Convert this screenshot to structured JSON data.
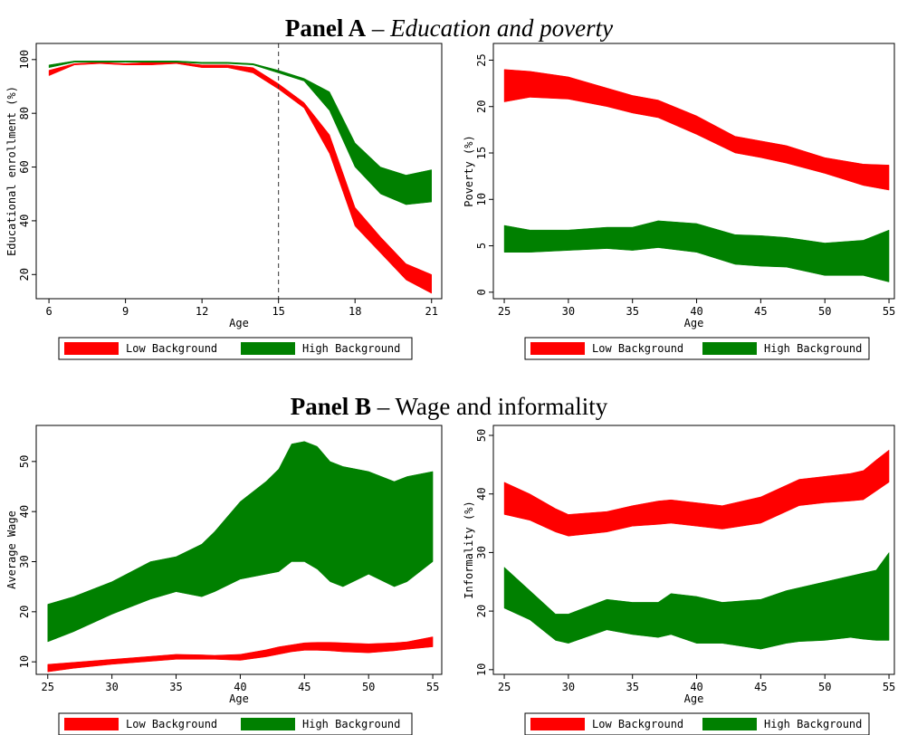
{
  "panels": [
    {
      "label": "Panel A",
      "separator": "–",
      "subtitle": "Education and poverty",
      "italic": true
    },
    {
      "label": "Panel B",
      "separator": "–",
      "subtitle": "Wage and informality",
      "italic": false
    }
  ],
  "chart_data": [
    {
      "type": "band",
      "x_label": "Age",
      "y_label": "Educational enrollment (%)",
      "legend": "bottom",
      "vline": 15,
      "xlim": [
        5.5,
        21.4
      ],
      "ylim": [
        11,
        106
      ],
      "xticks": [
        6,
        9,
        12,
        15,
        18,
        21
      ],
      "yticks": [
        20,
        40,
        60,
        80,
        100
      ],
      "x": [
        6,
        7,
        8,
        9,
        10,
        11,
        12,
        13,
        14,
        15,
        16,
        17,
        18,
        19,
        20,
        21
      ],
      "series": [
        {
          "name": "Low Background",
          "color": "#ff0000",
          "lower": [
            94,
            98,
            98.5,
            98,
            98,
            98.5,
            97,
            97,
            95,
            89,
            82,
            65,
            38,
            28,
            18,
            13
          ],
          "upper": [
            96,
            98.5,
            99,
            98.5,
            99,
            99,
            98,
            98,
            97,
            91,
            84,
            72,
            45,
            34,
            24,
            20
          ]
        },
        {
          "name": "High Background",
          "color": "#008000",
          "lower": [
            97,
            99,
            99,
            99,
            99,
            99,
            98.5,
            98.5,
            98,
            95,
            92,
            81,
            60,
            50,
            46,
            47
          ],
          "upper": [
            98,
            99.5,
            99.5,
            99.5,
            99.5,
            99.5,
            99,
            99,
            98.5,
            96,
            93,
            88,
            69,
            60,
            57,
            59
          ]
        }
      ]
    },
    {
      "type": "band",
      "x_label": "Age",
      "y_label": "Poverty (%)",
      "legend": "bottom",
      "xlim": [
        24.15,
        55.42
      ],
      "ylim": [
        -0.7,
        26.8
      ],
      "xticks": [
        25,
        30,
        35,
        40,
        45,
        50,
        55
      ],
      "yticks": [
        0,
        5,
        10,
        15,
        20,
        25
      ],
      "x": [
        25,
        27,
        30,
        33,
        35,
        37,
        40,
        43,
        45,
        47,
        50,
        53,
        55
      ],
      "series": [
        {
          "name": "Low Background",
          "color": "#ff0000",
          "lower": [
            20.5,
            21,
            20.8,
            20,
            19.3,
            18.8,
            17,
            15,
            14.5,
            13.9,
            12.8,
            11.5,
            11
          ],
          "upper": [
            24,
            23.8,
            23.2,
            22,
            21.2,
            20.7,
            19,
            16.8,
            16.3,
            15.8,
            14.5,
            13.8,
            13.7
          ]
        },
        {
          "name": "High Background",
          "color": "#008000",
          "lower": [
            4.3,
            4.3,
            4.5,
            4.7,
            4.5,
            4.8,
            4.3,
            3,
            2.8,
            2.7,
            1.8,
            1.8,
            1.1
          ],
          "upper": [
            7.2,
            6.7,
            6.7,
            7,
            7,
            7.7,
            7.4,
            6.2,
            6.1,
            5.9,
            5.3,
            5.6,
            6.7
          ]
        }
      ]
    },
    {
      "type": "band",
      "x_label": "Age",
      "y_label": "Average Wage",
      "legend": "bottom",
      "xlim": [
        24.1,
        55.7
      ],
      "ylim": [
        7.5,
        57.2
      ],
      "xticks": [
        25,
        30,
        35,
        40,
        45,
        50,
        55
      ],
      "yticks": [
        10,
        20,
        30,
        40,
        50
      ],
      "x": [
        25,
        27,
        30,
        33,
        35,
        37,
        38,
        40,
        42,
        43,
        44,
        45,
        46,
        47,
        48,
        50,
        52,
        53,
        55
      ],
      "series": [
        {
          "name": "Low Background",
          "color": "#ff0000",
          "lower": [
            8,
            8.7,
            9.5,
            10.1,
            10.5,
            10.5,
            10.5,
            10.3,
            11,
            11.5,
            12,
            12.3,
            12.3,
            12.2,
            12,
            11.8,
            12.2,
            12.5,
            13
          ],
          "upper": [
            9.5,
            9.9,
            10.5,
            11.1,
            11.5,
            11.4,
            11.3,
            11.5,
            12.4,
            13,
            13.4,
            13.8,
            13.9,
            13.9,
            13.8,
            13.6,
            13.8,
            14,
            15
          ]
        },
        {
          "name": "High Background",
          "color": "#008000",
          "lower": [
            14,
            16,
            19.5,
            22.5,
            24,
            23,
            24,
            26.5,
            27.5,
            28,
            30,
            30,
            28.5,
            26,
            25,
            27.5,
            25,
            26,
            30
          ],
          "upper": [
            21.5,
            23,
            26,
            30,
            31,
            33.5,
            36,
            42,
            46,
            48.5,
            53.5,
            54,
            53,
            50,
            49,
            48,
            46,
            47,
            48
          ]
        }
      ]
    },
    {
      "type": "band",
      "x_label": "Age",
      "y_label": "Informality (%)",
      "legend": "bottom",
      "xlim": [
        24.15,
        55.42
      ],
      "ylim": [
        9.2,
        51.7
      ],
      "xticks": [
        25,
        30,
        35,
        40,
        45,
        50,
        55
      ],
      "yticks": [
        10,
        20,
        30,
        40,
        50
      ],
      "x": [
        25,
        27,
        29,
        30,
        33,
        35,
        37,
        38,
        40,
        42,
        45,
        47,
        48,
        50,
        52,
        53,
        54,
        55
      ],
      "series": [
        {
          "name": "Low Background",
          "color": "#ff0000",
          "lower": [
            36.5,
            35.5,
            33.5,
            32.8,
            33.5,
            34.5,
            34.8,
            35,
            34.5,
            34,
            35,
            37,
            38,
            38.5,
            38.8,
            39,
            40.5,
            42
          ],
          "upper": [
            42,
            40,
            37.5,
            36.5,
            37,
            38,
            38.8,
            39,
            38.5,
            38,
            39.5,
            41.5,
            42.5,
            43,
            43.5,
            44,
            45.8,
            47.5
          ]
        },
        {
          "name": "High Background",
          "color": "#008000",
          "lower": [
            20.5,
            18.5,
            15,
            14.5,
            16.8,
            16,
            15.5,
            16,
            14.5,
            14.5,
            13.5,
            14.5,
            14.8,
            15,
            15.5,
            15.2,
            15,
            15
          ],
          "upper": [
            27.5,
            23.5,
            19.5,
            19.5,
            22,
            21.5,
            21.5,
            23,
            22.5,
            21.5,
            22,
            23.5,
            24,
            25,
            26,
            26.5,
            27,
            30
          ]
        }
      ]
    }
  ]
}
